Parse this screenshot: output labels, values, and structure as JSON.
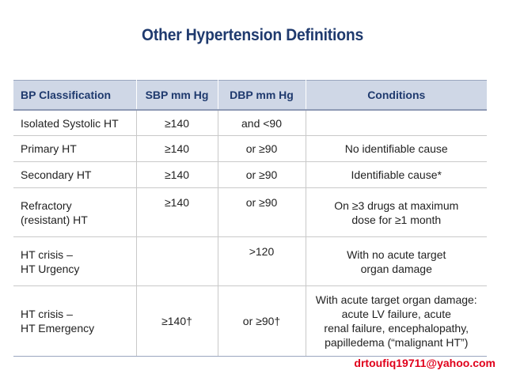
{
  "title": "Other Hypertension Definitions",
  "table": {
    "headers": [
      "BP Classification",
      "SBP mm Hg",
      "DBP mm Hg",
      "Conditions"
    ],
    "rows": [
      {
        "classification": [
          "Isolated Systolic HT"
        ],
        "sbp": "≥140",
        "dbp": "and <90",
        "conditions": []
      },
      {
        "classification": [
          "Primary HT"
        ],
        "sbp": "≥140",
        "dbp": "or ≥90",
        "conditions": [
          "No identifiable cause"
        ]
      },
      {
        "classification": [
          "Secondary HT"
        ],
        "sbp": "≥140",
        "dbp": "or ≥90",
        "conditions": [
          "Identifiable cause*"
        ]
      },
      {
        "classification": [
          "Refractory",
          "(resistant) HT"
        ],
        "sbp": "≥140",
        "dbp": "or ≥90",
        "conditions": [
          "On ≥3 drugs at maximum",
          "dose for ≥1 month"
        ]
      },
      {
        "classification": [
          "HT crisis –",
          "HT Urgency"
        ],
        "sbp": "",
        "dbp": ">120",
        "conditions": [
          "With no acute target",
          "organ damage"
        ]
      },
      {
        "classification": [
          "HT crisis –",
          "HT Emergency"
        ],
        "sbp": "≥140†",
        "dbp": "or ≥90†",
        "conditions": [
          "With acute target organ damage:",
          "acute LV failure, acute",
          "renal failure, encephalopathy,",
          "papilledema (“malignant HT”)"
        ]
      }
    ]
  },
  "footer": {
    "email": "drtoufiq19711@yahoo.com"
  },
  "colors": {
    "title": "#1f3a6e",
    "header_bg": "#cfd7e6",
    "email": "#e0001b"
  }
}
